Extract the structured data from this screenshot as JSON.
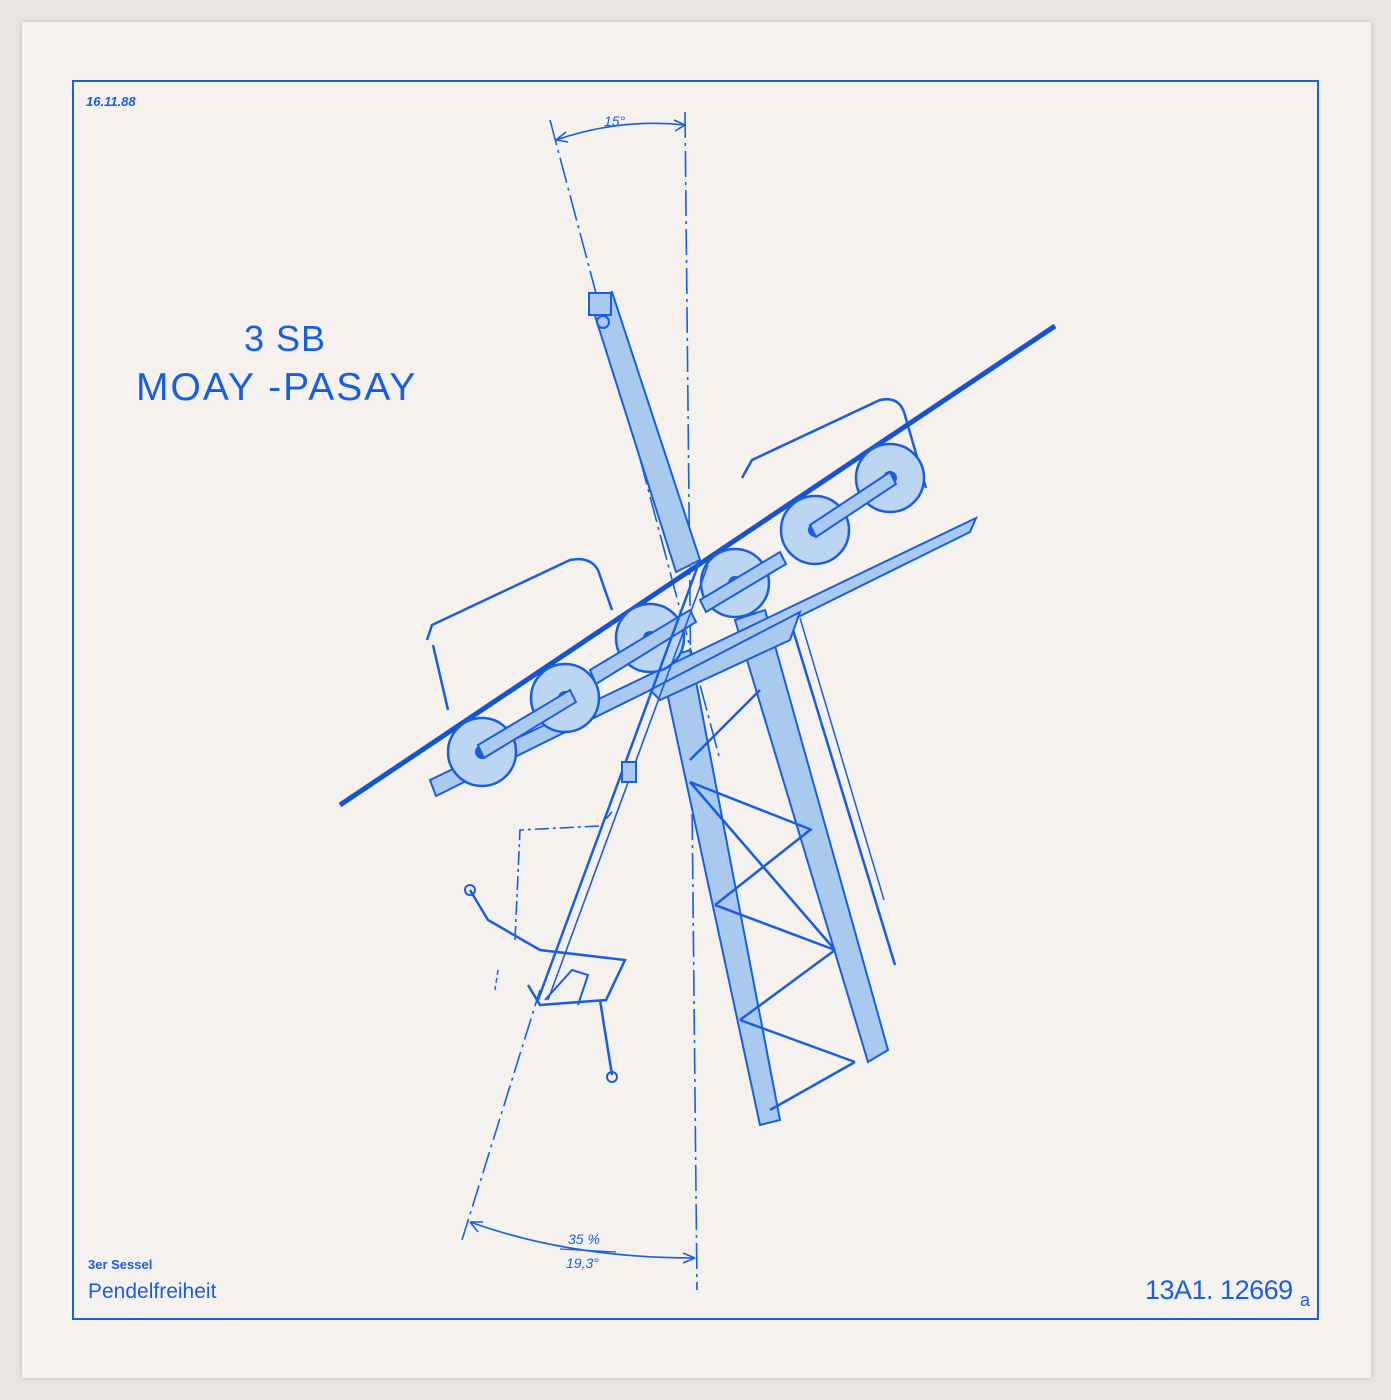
{
  "sheet": {
    "date": "16.11.88",
    "title_line1": "3 SB",
    "title_line2": "MOAY -PASAY",
    "subtitle_line1": "3er Sessel",
    "subtitle_line2": "Pendelfreiheit",
    "drawing_number": "13A1. 12669",
    "drawing_suffix": "a"
  },
  "dimensions": {
    "top_angle": "15°",
    "bottom_percent": "35 %",
    "bottom_angle": "19,3°"
  },
  "colors": {
    "ink": "#1a5ee0",
    "paper": "#f4f1ee",
    "fill": "#a9c9ef"
  }
}
